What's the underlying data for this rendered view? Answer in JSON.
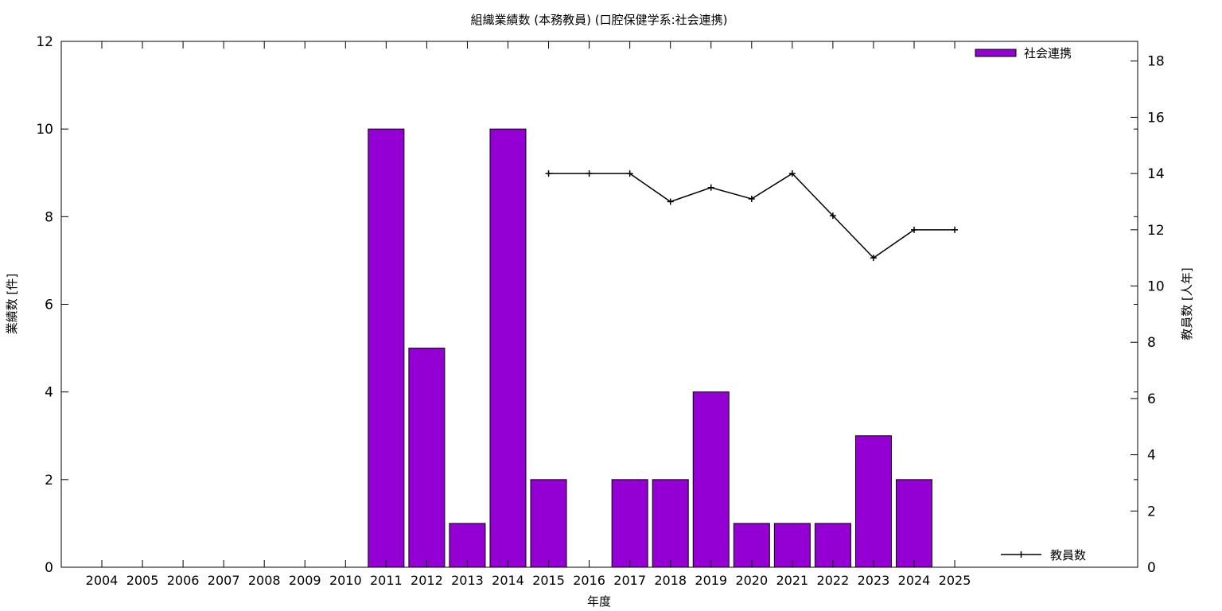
{
  "chart_data": {
    "type": "bar",
    "title": "組織業績数 (本務教員) (口腔保健学系:社会連携)",
    "xlabel": "年度",
    "ylabel": "業績数 [件]",
    "y2label": "教員数 [人年]",
    "categories": [
      "2004",
      "2005",
      "2006",
      "2007",
      "2008",
      "2009",
      "2010",
      "2011",
      "2012",
      "2013",
      "2014",
      "2015",
      "2016",
      "2017",
      "2018",
      "2019",
      "2020",
      "2021",
      "2022",
      "2023",
      "2024",
      "2025"
    ],
    "ylim": [
      0,
      12
    ],
    "y2lim": [
      0,
      18.7
    ],
    "yticks": [
      0,
      2,
      4,
      6,
      8,
      10,
      12
    ],
    "y2ticks": [
      0,
      2,
      4,
      6,
      8,
      10,
      12,
      14,
      16,
      18
    ],
    "grid": false,
    "series": [
      {
        "name": "社会連携",
        "kind": "bar",
        "axis": "left",
        "color": "#9400d3",
        "values": [
          0,
          0,
          0,
          0,
          0,
          0,
          0,
          10,
          5,
          1,
          10,
          2,
          0,
          2,
          2,
          4,
          1,
          1,
          1,
          3,
          2,
          0
        ]
      },
      {
        "name": "教員数",
        "kind": "line",
        "axis": "right",
        "color": "#000000",
        "values": [
          null,
          null,
          null,
          null,
          null,
          null,
          null,
          null,
          null,
          null,
          null,
          14,
          14,
          14,
          13,
          13.5,
          13.1,
          14,
          12.5,
          11,
          12,
          12
        ]
      }
    ],
    "legend": [
      {
        "label": "社会連携",
        "placement": "top-right"
      },
      {
        "label": "教員数",
        "placement": "bottom-right"
      }
    ]
  }
}
